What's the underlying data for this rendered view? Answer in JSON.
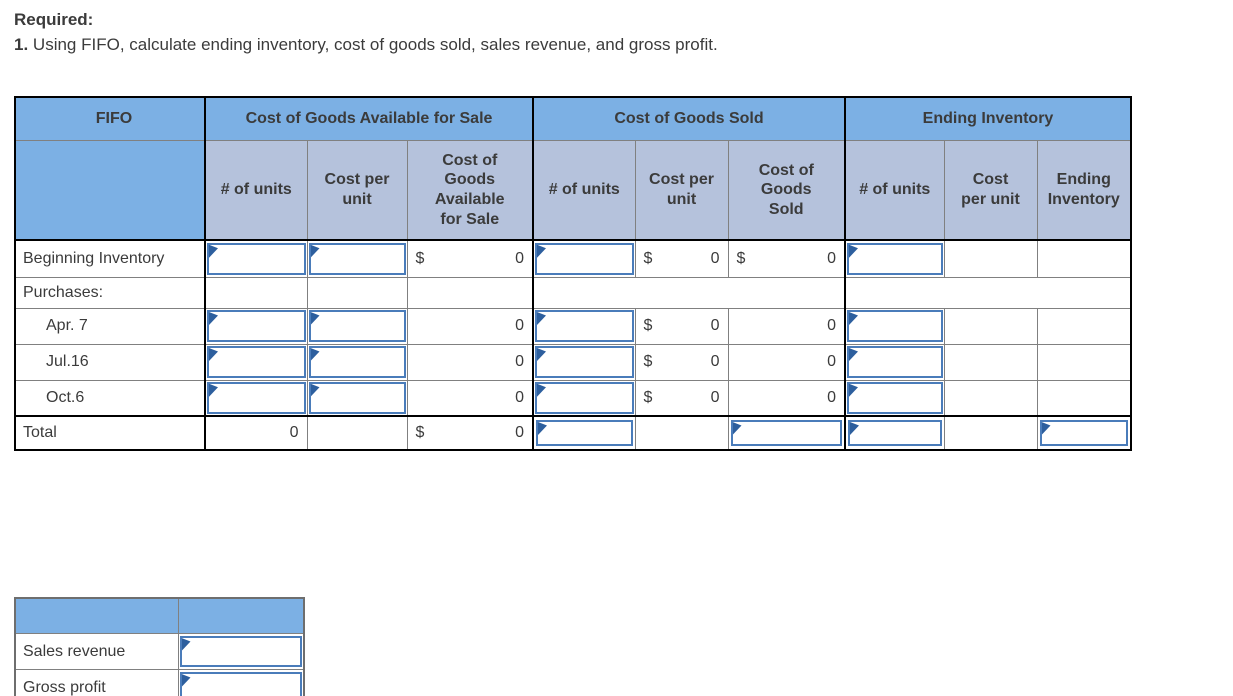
{
  "page": {
    "heading": "Required:",
    "instruction_number": "1.",
    "instruction": "Using FIFO, calculate ending inventory, cost of goods sold, sales revenue, and gross profit."
  },
  "colors": {
    "header_blue": "#7cb0e4",
    "subheader_blue": "#b5c2dc",
    "grid_gray": "#808080",
    "section_border_black": "#000000",
    "input_border_blue": "#4a7cba",
    "input_flag_blue": "#2d5f9e"
  },
  "fifo_table": {
    "corner_label": "FIFO",
    "group_headers": [
      "Cost of Goods Available for Sale",
      "Cost of Goods Sold",
      "Ending Inventory"
    ],
    "column_headers": [
      "# of units",
      "Cost per\nunit",
      "Cost of\nGoods\nAvailable\nfor Sale",
      "# of units",
      "Cost per\nunit",
      "Cost of\nGoods\nSold",
      "# of units",
      "Cost\nper unit",
      "Ending\nInventory"
    ],
    "rows": [
      {
        "label": "Beginning Inventory",
        "indent": 0,
        "row_class": "r-beg",
        "cells": [
          {
            "k": "input"
          },
          {
            "k": "input"
          },
          {
            "k": "val",
            "d": "$",
            "v": "0"
          },
          {
            "k": "input"
          },
          {
            "k": "val",
            "d": "$",
            "v": "0"
          },
          {
            "k": "val",
            "d": "$",
            "v": "0"
          },
          {
            "k": "input"
          },
          {
            "k": "blank"
          },
          {
            "k": "blank"
          }
        ]
      },
      {
        "label": "Purchases:",
        "indent": 0,
        "row_class": "r-purch",
        "cells": [
          {
            "k": "blank"
          },
          {
            "k": "blank"
          },
          {
            "k": "blank"
          },
          {
            "k": "blank",
            "span": 3
          },
          {
            "k": "blank",
            "span": 3
          }
        ]
      },
      {
        "label": "Apr. 7",
        "indent": 1,
        "row_class": "r-data",
        "cells": [
          {
            "k": "input"
          },
          {
            "k": "input"
          },
          {
            "k": "val",
            "v": "0"
          },
          {
            "k": "input"
          },
          {
            "k": "val",
            "d": "$",
            "v": "0"
          },
          {
            "k": "val",
            "v": "0"
          },
          {
            "k": "input"
          },
          {
            "k": "blank"
          },
          {
            "k": "blank"
          }
        ]
      },
      {
        "label": "Jul.16",
        "indent": 1,
        "row_class": "r-data",
        "cells": [
          {
            "k": "input"
          },
          {
            "k": "input"
          },
          {
            "k": "val",
            "v": "0"
          },
          {
            "k": "input"
          },
          {
            "k": "val",
            "d": "$",
            "v": "0"
          },
          {
            "k": "val",
            "v": "0"
          },
          {
            "k": "input"
          },
          {
            "k": "blank"
          },
          {
            "k": "blank"
          }
        ]
      },
      {
        "label": "Oct.6",
        "indent": 1,
        "row_class": "r-data",
        "cells": [
          {
            "k": "input"
          },
          {
            "k": "input"
          },
          {
            "k": "val",
            "v": "0"
          },
          {
            "k": "input"
          },
          {
            "k": "val",
            "d": "$",
            "v": "0"
          },
          {
            "k": "val",
            "v": "0"
          },
          {
            "k": "input"
          },
          {
            "k": "blank"
          },
          {
            "k": "blank"
          }
        ]
      },
      {
        "label": "Total",
        "indent": 0,
        "row_class": "r-total",
        "is_total": true,
        "cells": [
          {
            "k": "val",
            "v": "0"
          },
          {
            "k": "blank"
          },
          {
            "k": "val",
            "d": "$",
            "v": "0"
          },
          {
            "k": "input",
            "inset": true
          },
          {
            "k": "blank"
          },
          {
            "k": "input",
            "inset": true
          },
          {
            "k": "input",
            "inset": true
          },
          {
            "k": "blank"
          },
          {
            "k": "input",
            "inset": true
          }
        ]
      }
    ]
  },
  "summary_table": {
    "header_cells": [
      "",
      ""
    ],
    "rows": [
      {
        "label": "Sales revenue"
      },
      {
        "label": "Gross profit"
      }
    ]
  }
}
